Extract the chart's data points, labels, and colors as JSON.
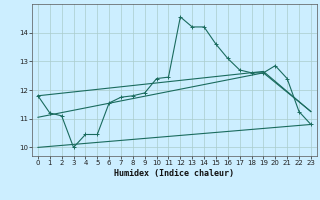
{
  "title": "",
  "xlabel": "Humidex (Indice chaleur)",
  "background_color": "#cceeff",
  "grid_color": "#aacccc",
  "line_color": "#1a6b5e",
  "x_values": [
    0,
    1,
    2,
    3,
    4,
    5,
    6,
    7,
    8,
    9,
    10,
    11,
    12,
    13,
    14,
    15,
    16,
    17,
    18,
    19,
    20,
    21,
    22,
    23
  ],
  "line1_y": [
    11.8,
    11.2,
    11.1,
    10.0,
    10.45,
    10.45,
    11.55,
    11.75,
    11.8,
    11.9,
    12.4,
    12.45,
    14.55,
    14.2,
    14.2,
    13.6,
    13.1,
    12.7,
    12.6,
    12.6,
    12.85,
    12.4,
    11.25,
    10.8
  ],
  "line2_x": [
    0,
    19,
    23
  ],
  "line2_y": [
    11.8,
    12.65,
    11.25
  ],
  "line3_x": [
    0,
    19,
    23
  ],
  "line3_y": [
    11.05,
    12.6,
    11.25
  ],
  "line4_x": [
    0,
    23
  ],
  "line4_y": [
    10.0,
    10.8
  ],
  "ylim": [
    9.7,
    15.0
  ],
  "xlim": [
    -0.5,
    23.5
  ],
  "yticks": [
    10,
    11,
    12,
    13,
    14
  ],
  "xticks": [
    0,
    1,
    2,
    3,
    4,
    5,
    6,
    7,
    8,
    9,
    10,
    11,
    12,
    13,
    14,
    15,
    16,
    17,
    18,
    19,
    20,
    21,
    22,
    23
  ]
}
